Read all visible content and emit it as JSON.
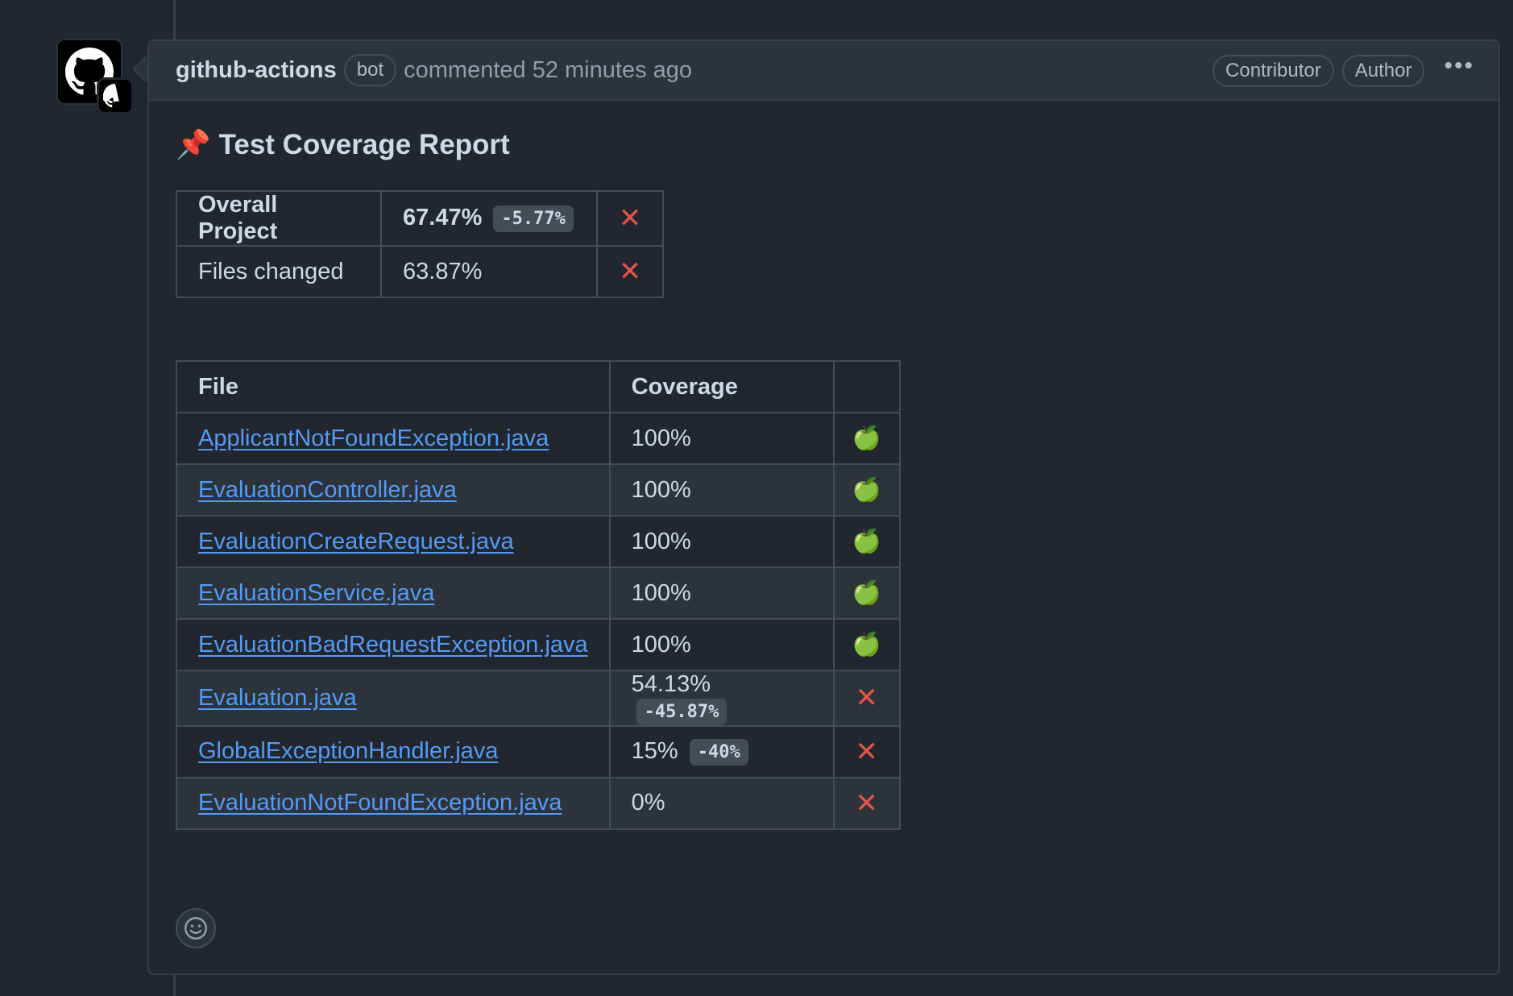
{
  "comment": {
    "author": "github-actions",
    "bot_label": "bot",
    "commented_text": "commented 52 minutes ago",
    "badges": [
      "Contributor",
      "Author"
    ],
    "more_label": "•••"
  },
  "report": {
    "title_icon": "📌",
    "title": "Test Coverage Report",
    "summary": [
      {
        "label": "Overall Project",
        "value": "67.47%",
        "delta": "-5.77%",
        "status": "✕"
      },
      {
        "label": "Files changed",
        "value": "63.87%",
        "delta": "",
        "status": "✕"
      }
    ],
    "files_header": {
      "file": "File",
      "coverage": "Coverage",
      "status": ""
    },
    "files": [
      {
        "name": "ApplicantNotFoundException.java",
        "coverage": "100%",
        "delta": "",
        "status": "🍏"
      },
      {
        "name": "EvaluationController.java",
        "coverage": "100%",
        "delta": "",
        "status": "🍏"
      },
      {
        "name": "EvaluationCreateRequest.java",
        "coverage": "100%",
        "delta": "",
        "status": "🍏"
      },
      {
        "name": "EvaluationService.java",
        "coverage": "100%",
        "delta": "",
        "status": "🍏"
      },
      {
        "name": "EvaluationBadRequestException.java",
        "coverage": "100%",
        "delta": "",
        "status": "🍏"
      },
      {
        "name": "Evaluation.java",
        "coverage": "54.13%",
        "delta": "-45.87%",
        "status": "✕"
      },
      {
        "name": "GlobalExceptionHandler.java",
        "coverage": "15%",
        "delta": "-40%",
        "status": "✕"
      },
      {
        "name": "EvaluationNotFoundException.java",
        "coverage": "0%",
        "delta": "",
        "status": "✕"
      }
    ]
  },
  "icons": {
    "avatar": "github-mark-icon",
    "reaction": "smiley-icon",
    "fail": "x-mark-icon",
    "pass": "green-apple-icon"
  },
  "colors": {
    "background": "#22262e",
    "link": "#539bf5",
    "fail": "#e5534b",
    "pass": "#7cc242"
  }
}
